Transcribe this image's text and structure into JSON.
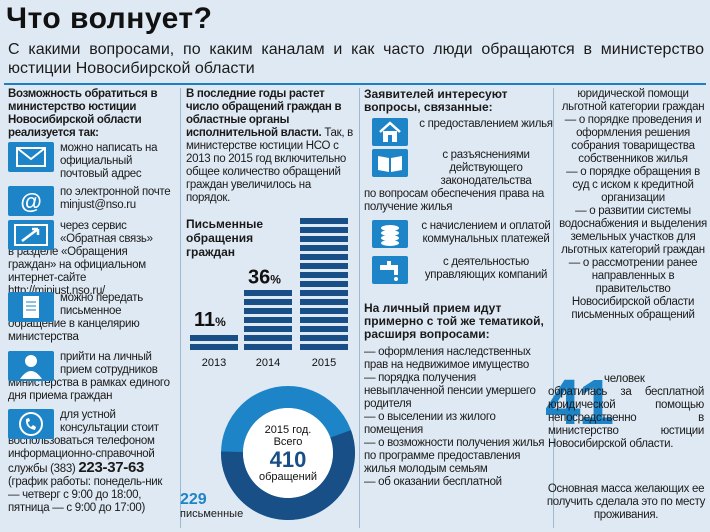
{
  "title": "Что волнует?",
  "subtitle": "С какими вопросами, по каким каналам и как часто люди обращаются в министерство юстиции Новосибирской области",
  "column1": {
    "intro": "Возможность обратиться в министерство юстиции Новосибирской области реализуется так:",
    "channels": [
      {
        "icon": "envelope-icon",
        "text": "можно написать на официальный почтовый адрес"
      },
      {
        "icon": "at-sign-icon",
        "text": "по электронной почте",
        "extra": "minjust@nso.ru"
      },
      {
        "icon": "arrow-cursor-icon",
        "text": "через сервис «Обратная связь»",
        "extra": "в разделе «Обращения граждан» на официальном интернет-сайте http://minjust.nso.ru/"
      },
      {
        "icon": "paper-icon",
        "text": "можно передать письменное",
        "extra": "обращение в канцелярию министерства"
      },
      {
        "icon": "person-icon",
        "text": "прийти на личный прием сотрудников",
        "extra": "министерства в рамках единого дня приема граждан"
      },
      {
        "icon": "phone-icon",
        "text": "для устной консультации стоит",
        "extra": "воспользоваться телефоном информационно-справочной службы (383)",
        "phone": "223-37-63",
        "schedule": "(график работы: понедель-ник — четверг с 9:00 до 18:00, пятница — с 9:00 до 17:00)"
      }
    ]
  },
  "column2": {
    "intro_bold": "В последние годы растет число обращений граждан в областные органы исполнительной власти.",
    "intro_rest": "Так, в министерстве юстиции НСО с 2013 по 2015 год включительно общее количество обращений граждан увеличилось на порядок."
  },
  "chart_data": {
    "type": "bar",
    "title": "Письменные обращения граждан",
    "categories": [
      "2013",
      "2014",
      "2015"
    ],
    "values": [
      11,
      36,
      79
    ],
    "value_suffix": "%",
    "donut": {
      "center_label": "2015 год. Всего",
      "total": 410,
      "total_label": "обращений",
      "written": 229,
      "written_label": "письменные"
    }
  },
  "column3": {
    "head": "Заявителей интересуют вопросы, связанные:",
    "topics": [
      {
        "icon": "house-icon",
        "text": "с предоставлением жилья"
      },
      {
        "icon": "book-icon",
        "text": "с разъяснениями действующего законодательства",
        "extra": "по вопросам обеспечения права на получение жилья"
      },
      {
        "icon": "coins-icon",
        "text": "с начислением и оплатой коммунальных платежей"
      },
      {
        "icon": "faucet-icon",
        "text": "с деятельностью управляющих компаний"
      }
    ],
    "reception_head": "На личный прием идут примерно с той же тематикой, расширя вопросами:",
    "reception_items": [
      "— оформления наследственных прав на недвижимое имущество",
      "— порядка получения невыплаченной пенсии умершего родителя",
      "— о выселении из жилого помещения",
      "— о возможности получения жилья по программе предоставления жилья молодым семьям",
      "— об оказании бесплатной"
    ]
  },
  "column4": {
    "items": [
      "юридической помощи льготной категории граждан",
      "— о порядке проведения и оформления решения собрания товарищества собственников жилья",
      "— о порядке обращения в суд с иском к кредитной организации",
      "— о развитии системы водоснабжения и выделения земельных участков для льготных категорий граждан",
      "— о рассмотрении ранее направленных в правительство Новосибирской области письменных обращений"
    ],
    "big_number": "41",
    "big_text": "человек обратилась за бесплатной юридической помощью непосредственно в министерство юстиции Новосибирской области.",
    "bottom": "Основная масса желающих ее получить сделала это по месту проживания."
  },
  "colors": {
    "accent": "#1c84c7",
    "dark": "#174f86",
    "bg": "#dfe9f3"
  }
}
